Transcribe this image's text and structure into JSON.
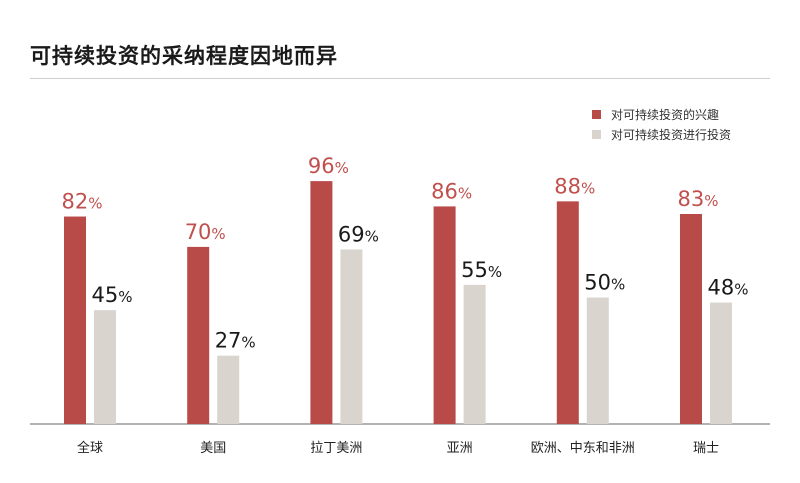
{
  "title": "可持续投资的采纳程度因地而异",
  "colors": {
    "interest": "#b84a48",
    "investing": "#d9d4cd",
    "interest_label": "#c0504d",
    "investing_label": "#1a1a1a",
    "axis": "#666666"
  },
  "chart_data": {
    "type": "bar",
    "title": "可持续投资的采纳程度因地而异",
    "categories": [
      "全球",
      "美国",
      "拉丁美洲",
      "亚洲",
      "欧洲、中东和非洲",
      "瑞士"
    ],
    "series": [
      {
        "name": "对可持续投资的兴趣",
        "values": [
          82,
          70,
          96,
          86,
          88,
          83
        ]
      },
      {
        "name": "对可持续投资进行投资",
        "values": [
          45,
          27,
          69,
          55,
          50,
          48
        ]
      }
    ],
    "value_suffix": "%",
    "ylim": [
      0,
      100
    ],
    "grid": false,
    "legend_position": "top-right"
  }
}
